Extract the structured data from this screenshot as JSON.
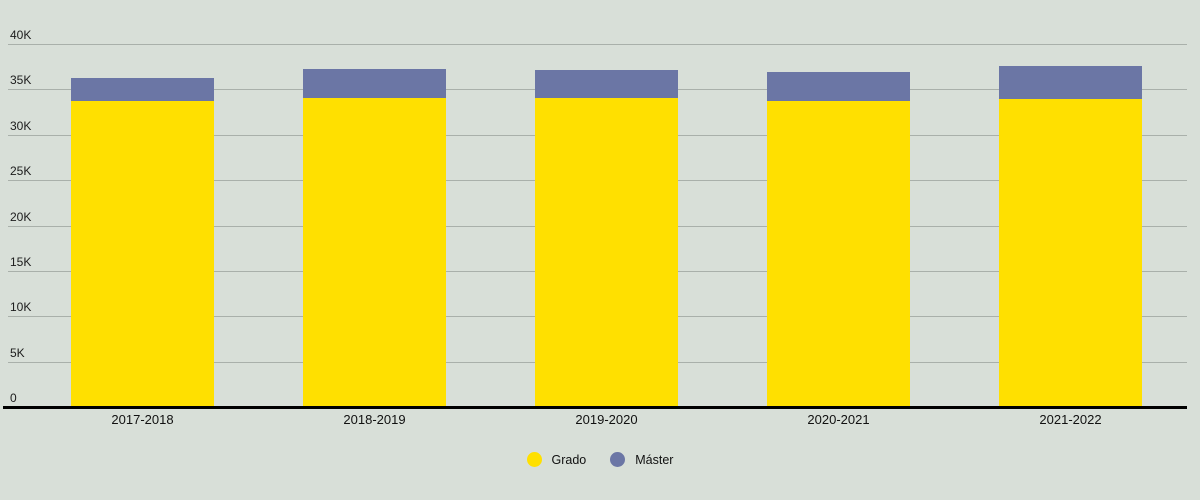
{
  "chart_data": {
    "type": "bar",
    "stacked": true,
    "title": "",
    "xlabel": "",
    "ylabel": "",
    "categories": [
      "2017-2018",
      "2018-2019",
      "2019-2020",
      "2020-2021",
      "2021-2022"
    ],
    "series": [
      {
        "name": "Grado",
        "color": "#ffe000",
        "values": [
          33700,
          34100,
          34000,
          33700,
          33900
        ]
      },
      {
        "name": "Máster",
        "color": "#6b76a5",
        "values": [
          2500,
          3100,
          3150,
          3200,
          3700
        ]
      }
    ],
    "totals": [
      36200,
      37200,
      37150,
      36900,
      37600
    ],
    "ylim": [
      0,
      40000
    ],
    "yticks": [
      0,
      5000,
      10000,
      15000,
      20000,
      25000,
      30000,
      35000,
      40000
    ],
    "ytick_labels": [
      "0",
      "5K",
      "10K",
      "15K",
      "20K",
      "25K",
      "30K",
      "35K",
      "40K"
    ],
    "grid": true,
    "legend_position": "bottom"
  },
  "legend": {
    "items": [
      {
        "label": "Grado",
        "color": "#ffe000"
      },
      {
        "label": "Máster",
        "color": "#6b76a5"
      }
    ]
  },
  "colors": {
    "background": "#d8dfd8",
    "gridline": "#a9b0aa",
    "axis_line": "#000000",
    "tick_text": "#1c1c1c"
  }
}
